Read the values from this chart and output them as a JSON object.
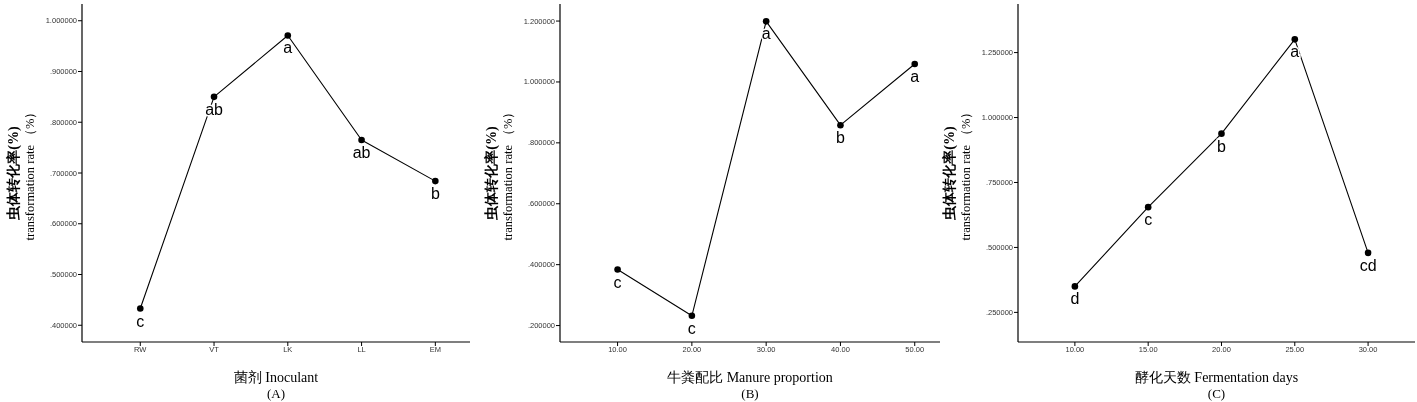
{
  "chart_data": [
    {
      "type": "line",
      "xlabel": "菌剂 Inoculant",
      "ylabel": "虫体转化率(%)\ntransformation rate （%）",
      "categories": [
        "RW",
        "VT",
        "LK",
        "LL",
        "EM"
      ],
      "values": [
        0.433,
        0.85,
        0.971,
        0.765,
        0.684
      ],
      "color": "#000000",
      "marker": "circle",
      "line_style": "solid",
      "grid": false,
      "ylim": [
        0.367,
        1.033
      ],
      "yticks": [
        {
          "value": 0.4,
          "label": ".400000"
        },
        {
          "value": 0.5,
          "label": ".500000"
        },
        {
          "value": 0.6,
          "label": ".600000"
        },
        {
          "value": 0.7,
          "label": ".700000"
        },
        {
          "value": 0.8,
          "label": ".800000"
        },
        {
          "value": 0.9,
          "label": ".900000"
        },
        {
          "value": 1.0,
          "label": "1.000000"
        }
      ],
      "annotations": [
        {
          "text": "c",
          "x": "RW",
          "y": 0.433
        },
        {
          "text": "ab",
          "x": "VT",
          "y": 0.85
        },
        {
          "text": "a",
          "x": "LK",
          "y": 0.971
        },
        {
          "text": "ab",
          "x": "LL",
          "y": 0.765
        },
        {
          "text": "b",
          "x": "EM",
          "y": 0.684
        },
        "(A)"
      ]
    },
    {
      "type": "line",
      "xlabel": "牛粪配比 Manure proportion",
      "ylabel": "虫体转化率(%)\ntransformation rate （%）",
      "x": [
        10,
        20,
        30,
        40,
        50
      ],
      "values": [
        0.384,
        0.232,
        1.199,
        0.858,
        1.059
      ],
      "color": "#000000",
      "marker": "circle",
      "line_style": "solid",
      "grid": false,
      "xlim": [
        2.25,
        53.4
      ],
      "ylim": [
        0.146,
        1.256
      ],
      "xticks": [
        {
          "value": 10,
          "label": "10.00"
        },
        {
          "value": 20,
          "label": "20.00"
        },
        {
          "value": 30,
          "label": "30.00"
        },
        {
          "value": 40,
          "label": "40.00"
        },
        {
          "value": 50,
          "label": "50.00"
        }
      ],
      "yticks": [
        {
          "value": 0.2,
          "label": ".200000"
        },
        {
          "value": 0.4,
          "label": ".400000"
        },
        {
          "value": 0.6,
          "label": ".600000"
        },
        {
          "value": 0.8,
          "label": ".800000"
        },
        {
          "value": 1.0,
          "label": "1.000000"
        },
        {
          "value": 1.2,
          "label": "1.200000"
        }
      ],
      "annotations": [
        {
          "text": "c",
          "x": 10,
          "y": 0.384
        },
        {
          "text": "c",
          "x": 20,
          "y": 0.232
        },
        {
          "text": "a",
          "x": 30,
          "y": 1.199
        },
        {
          "text": "b",
          "x": 40,
          "y": 0.858
        },
        {
          "text": "a",
          "x": 50,
          "y": 1.059
        },
        "(B)"
      ]
    },
    {
      "type": "line",
      "xlabel": "酵化天数 Fermentation days",
      "ylabel": "虫体转化率(%)\ntransformation rate （%）",
      "x": [
        10,
        15,
        20,
        25,
        30
      ],
      "values": [
        0.35,
        0.655,
        0.938,
        1.301,
        0.479
      ],
      "color": "#000000",
      "marker": "circle",
      "line_style": "solid",
      "grid": false,
      "xlim": [
        6.12,
        33.2
      ],
      "ylim": [
        0.136,
        1.437
      ],
      "xticks": [
        {
          "value": 10,
          "label": "10.00"
        },
        {
          "value": 15,
          "label": "15.00"
        },
        {
          "value": 20,
          "label": "20.00"
        },
        {
          "value": 25,
          "label": "25.00"
        },
        {
          "value": 30,
          "label": "30.00"
        }
      ],
      "yticks": [
        {
          "value": 0.25,
          "label": ".250000"
        },
        {
          "value": 0.5,
          "label": ".500000"
        },
        {
          "value": 0.75,
          "label": ".750000"
        },
        {
          "value": 1.0,
          "label": "1.000000"
        },
        {
          "value": 1.25,
          "label": "1.250000"
        }
      ],
      "annotations": [
        {
          "text": "d",
          "x": 10,
          "y": 0.35
        },
        {
          "text": "c",
          "x": 15,
          "y": 0.655
        },
        {
          "text": "b",
          "x": 20,
          "y": 0.938
        },
        {
          "text": "a",
          "x": 25,
          "y": 1.301
        },
        {
          "text": "cd",
          "x": 30,
          "y": 0.479
        },
        "(C)"
      ]
    }
  ]
}
